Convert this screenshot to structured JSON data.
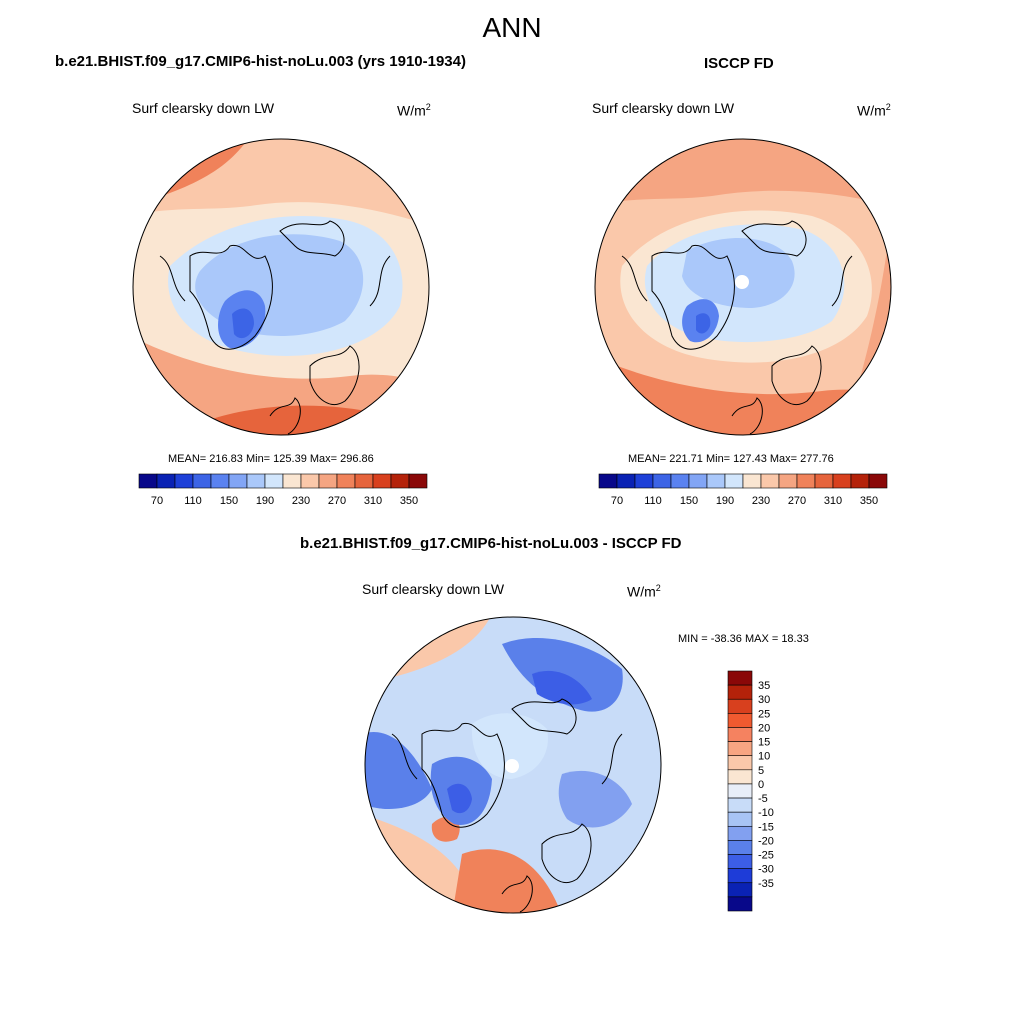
{
  "page": {
    "title": "ANN"
  },
  "panels": [
    {
      "id": "model",
      "title": "b.e21.BHIST.f09_g17.CMIP6-hist-noLu.003 (yrs 1910-1934)",
      "variable": "Surf clearsky down LW",
      "unit_base": "W/m",
      "unit_exp": "2",
      "stats": "MEAN= 216.83  Min= 125.39  Max= 296.86"
    },
    {
      "id": "obs",
      "title": "ISCCP FD",
      "variable": "Surf clearsky down LW",
      "unit_base": "W/m",
      "unit_exp": "2",
      "stats": "MEAN= 221.71  Min= 127.43  Max= 277.76"
    },
    {
      "id": "diff",
      "title": "b.e21.BHIST.f09_g17.CMIP6-hist-noLu.003 - ISCCP FD",
      "variable": "Surf clearsky down LW",
      "unit_base": "W/m",
      "unit_exp": "2",
      "stats": "MIN = -38.36 MAX =  18.33"
    }
  ],
  "colorbar_abs": {
    "colors": [
      "#08088a",
      "#0a22b4",
      "#1e40d8",
      "#3c64e6",
      "#5a82f0",
      "#82a5f5",
      "#aac8fa",
      "#d2e6fc",
      "#fae6d2",
      "#fac8aa",
      "#f5a582",
      "#f0825a",
      "#e6643c",
      "#d8401e",
      "#b4220a",
      "#8a0808"
    ],
    "labels": [
      "70",
      "110",
      "150",
      "190",
      "230",
      "270",
      "310",
      "350"
    ]
  },
  "colorbar_diff": {
    "colors": [
      "#8a0808",
      "#b4220a",
      "#d8401e",
      "#f05a30",
      "#f58260",
      "#f7a582",
      "#fac8aa",
      "#fae6d2",
      "#e8eef8",
      "#c8dcf8",
      "#a8c4f5",
      "#82a0f0",
      "#5a80ea",
      "#3c5ee6",
      "#1e3cd8",
      "#0a22b4",
      "#08088a"
    ],
    "labels": [
      "35",
      "30",
      "25",
      "20",
      "15",
      "10",
      "5",
      "0",
      "-5",
      "-10",
      "-15",
      "-20",
      "-25",
      "-30",
      "-35"
    ]
  }
}
